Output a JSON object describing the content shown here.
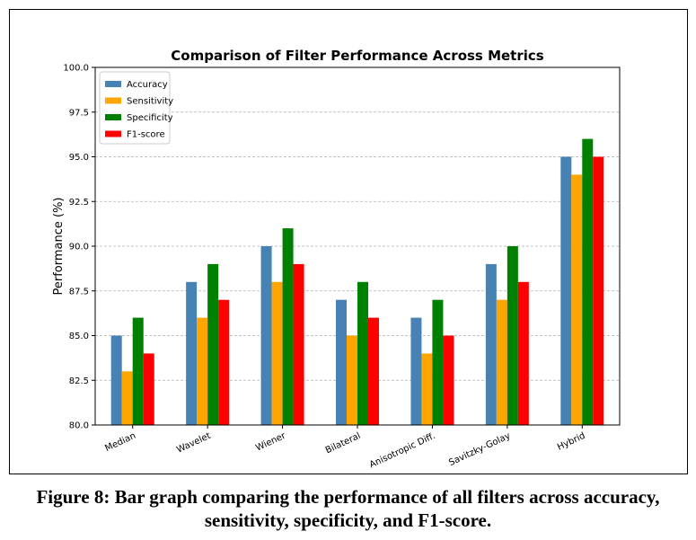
{
  "chart_data": {
    "type": "bar",
    "title": "Comparison of Filter Performance Across Metrics",
    "xlabel": "",
    "ylabel": "Performance (%)",
    "ylim": [
      80.0,
      100.0
    ],
    "yticks": [
      "80.0",
      "82.5",
      "85.0",
      "87.5",
      "90.0",
      "92.5",
      "95.0",
      "97.5",
      "100.0"
    ],
    "grid": "y-dashed",
    "legend_position": "top-left",
    "categories": [
      "Median",
      "Wavelet",
      "Wiener",
      "Bilateral",
      "Anisotropic Diff.",
      "Savitzky-Golay",
      "Hybrid"
    ],
    "series": [
      {
        "name": "Accuracy",
        "color": "#4682B4",
        "values": [
          85,
          88,
          90,
          87,
          86,
          89,
          95
        ]
      },
      {
        "name": "Sensitivity",
        "color": "#FFA500",
        "values": [
          83,
          86,
          88,
          85,
          84,
          87,
          94
        ]
      },
      {
        "name": "Specificity",
        "color": "#008000",
        "values": [
          86,
          89,
          91,
          88,
          87,
          90,
          96
        ]
      },
      {
        "name": "F1-score",
        "color": "#FF0000",
        "values": [
          84,
          87,
          89,
          86,
          85,
          88,
          95
        ]
      }
    ]
  },
  "caption": {
    "line1": "Figure 8: Bar graph comparing the performance of all filters across accuracy,",
    "line2": "sensitivity, specificity, and F1-score."
  }
}
